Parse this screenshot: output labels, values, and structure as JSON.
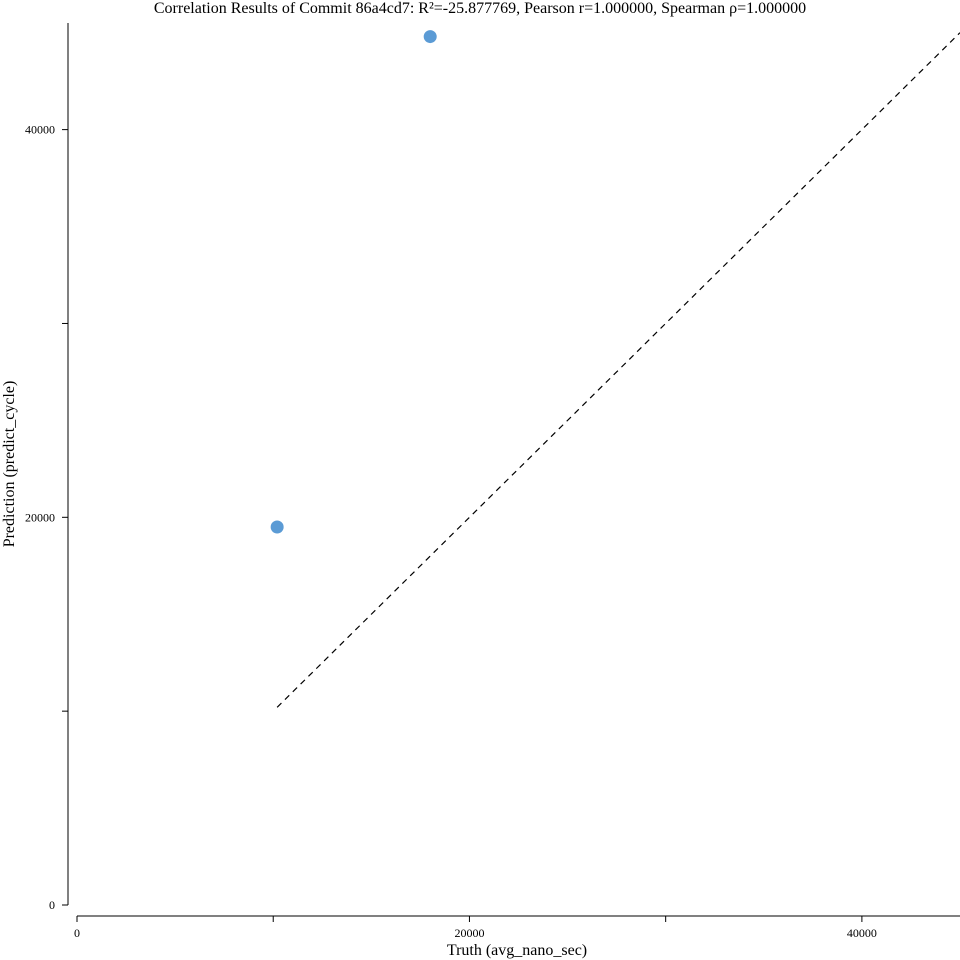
{
  "chart_data": {
    "type": "scatter",
    "title": "Correlation Results of Commit 86a4cd7: R²=-25.877769, Pearson r=1.000000, Spearman ρ=1.000000",
    "xlabel": "Truth (avg_nano_sec)",
    "ylabel": "Prediction (predict_cycle)",
    "xlim": [
      0,
      45000
    ],
    "ylim": [
      0,
      45500
    ],
    "x_ticks": [
      0,
      10000,
      20000,
      30000,
      40000
    ],
    "x_tick_labels": [
      "0",
      "",
      "20000",
      "",
      "40000"
    ],
    "y_ticks": [
      0,
      10000,
      20000,
      30000,
      40000
    ],
    "y_tick_labels": [
      "0",
      "",
      "20000",
      "",
      "40000"
    ],
    "grid": false,
    "point_color": "#5b9bd5",
    "reference_line": {
      "style": "dashed",
      "color": "#000000",
      "points": [
        [
          10200,
          10200
        ],
        [
          45000,
          45000
        ]
      ]
    },
    "series": [
      {
        "x": [
          10200,
          18000
        ],
        "y": [
          19500,
          44800
        ]
      }
    ]
  }
}
